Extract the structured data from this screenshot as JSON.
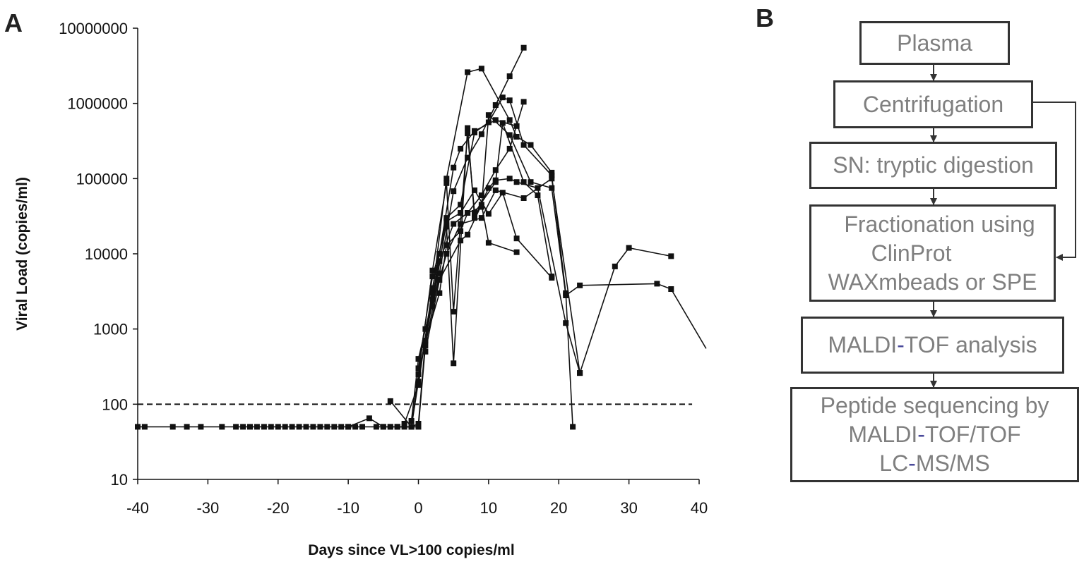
{
  "panels": {
    "a_label": "A",
    "b_label": "B"
  },
  "chart_data": {
    "type": "line",
    "title": "",
    "xlabel": "Days since VL>100 copies/ml",
    "ylabel": "Viral Load (copies/ml)",
    "xlim": [
      -40,
      40
    ],
    "ylim": [
      10,
      10000000
    ],
    "yscale": "log",
    "x_ticks": [
      -40,
      -30,
      -20,
      -10,
      0,
      10,
      20,
      30,
      40
    ],
    "x_tick_labels": [
      "-40",
      "-30",
      "-20",
      "-10",
      "0",
      "10",
      "20",
      "30",
      "40"
    ],
    "y_ticks": [
      10,
      100,
      1000,
      10000,
      100000,
      1000000,
      10000000
    ],
    "y_tick_labels": [
      "10",
      "100",
      "1000",
      "10000",
      "100000",
      "1000000",
      "10000000"
    ],
    "threshold": {
      "y": 100,
      "style": "dashed"
    },
    "grid": false,
    "legend": "none",
    "series": [
      {
        "x": [
          -40,
          -39,
          -35,
          -33,
          -31,
          -28,
          -26,
          -25,
          -24,
          -23,
          -22,
          -21,
          -20,
          -19,
          -18,
          -17,
          -16,
          -15,
          -14,
          -13,
          -12,
          -11,
          -10,
          -9,
          -8,
          -6,
          -5,
          -4,
          -3,
          -2,
          -1,
          0,
          1,
          3,
          5,
          7,
          9,
          11,
          13,
          15
        ],
        "y": [
          50,
          50,
          50,
          50,
          50,
          50,
          50,
          50,
          50,
          50,
          50,
          50,
          50,
          50,
          50,
          50,
          50,
          50,
          50,
          50,
          50,
          50,
          50,
          50,
          50,
          50,
          50,
          50,
          50,
          50,
          50,
          50,
          600,
          5500,
          68000,
          190000,
          390000,
          950000,
          2300000,
          5500000
        ]
      },
      {
        "x": [
          -10,
          -7,
          -5,
          -4,
          -3,
          -1,
          0,
          1,
          3,
          5,
          7,
          9,
          11,
          13,
          15
        ],
        "y": [
          50,
          65,
          50,
          50,
          50,
          50,
          55,
          700,
          8000,
          25000,
          35000,
          60000,
          130000,
          250000,
          1050000
        ]
      },
      {
        "x": [
          -3,
          -1,
          0,
          2,
          4,
          7,
          9,
          13,
          14,
          16,
          19
        ],
        "y": [
          50,
          50,
          200,
          3000,
          100000,
          2600000,
          2900000,
          600000,
          360000,
          280000,
          120000
        ]
      },
      {
        "x": [
          -4,
          -1,
          0,
          2,
          4,
          5,
          7,
          8,
          11,
          12,
          15,
          17,
          19
        ],
        "y": [
          110,
          50,
          250,
          6000,
          87000,
          1700,
          400000,
          35000,
          90000,
          550000,
          90000,
          60000,
          5000
        ]
      },
      {
        "x": [
          -2,
          0,
          2,
          4,
          6,
          8,
          10,
          12,
          13,
          15,
          19,
          21,
          22
        ],
        "y": [
          55,
          180,
          3500,
          30000,
          45000,
          410000,
          560000,
          1200000,
          1100000,
          280000,
          110000,
          3000,
          50
        ]
      },
      {
        "x": [
          -1,
          0,
          2,
          3,
          5,
          6,
          8,
          11,
          14
        ],
        "y": [
          60,
          400,
          2500,
          10000,
          140000,
          250000,
          430000,
          600000,
          500000
        ]
      },
      {
        "x": [
          0,
          2,
          4,
          5,
          7,
          8,
          10,
          11,
          13,
          14,
          17,
          21,
          23,
          28,
          30,
          36
        ],
        "y": [
          300,
          5000,
          23000,
          350,
          470000,
          30000,
          75000,
          95000,
          100000,
          90000,
          75000,
          1200,
          260,
          6800,
          12000,
          9300
        ]
      },
      {
        "x": [
          0,
          1,
          3,
          4,
          6,
          7,
          9,
          10,
          13,
          16,
          19,
          21,
          23,
          34,
          36,
          41
        ],
        "y": [
          250,
          700,
          3000,
          13000,
          20000,
          35000,
          42000,
          700000,
          380000,
          90000,
          75000,
          2800,
          3800,
          4000,
          3400,
          550
        ]
      },
      {
        "x": [
          1,
          3,
          6,
          7,
          9,
          10,
          14
        ],
        "y": [
          500,
          4500,
          15000,
          18000,
          45000,
          14000,
          10500
        ]
      },
      {
        "x": [
          1,
          4,
          6,
          9,
          11,
          15,
          19,
          23
        ],
        "y": [
          1000,
          10000,
          25000,
          30000,
          70000,
          55000,
          100000,
          260
        ]
      },
      {
        "x": [
          2,
          4,
          6,
          8,
          10,
          12,
          14,
          19
        ],
        "y": [
          2000,
          27000,
          35000,
          70000,
          34000,
          65000,
          16000,
          4800
        ]
      }
    ]
  },
  "flowchart": {
    "steps": {
      "s1": "Plasma",
      "s2": "Centrifugation",
      "s3": "SN: tryptic digestion",
      "s4_l1": "Fractionation using",
      "s4_l2": "ClinProt",
      "s4_l3": "WAXmbeads or SPE",
      "s5_a": "MALDI",
      "s5_b": "-",
      "s5_c": "TOF analysis",
      "s6_l1": "Peptide sequencing by",
      "s6_l2a": "MALDI",
      "s6_l2b": "-",
      "s6_l2c": "TOF/TOF",
      "s6_l3a": "LC",
      "s6_l3b": "-",
      "s6_l3c": "MS/MS"
    },
    "colors": {
      "text": "#7f7f7f",
      "hyphen": "#4a4a9a",
      "border": "#333333"
    }
  }
}
